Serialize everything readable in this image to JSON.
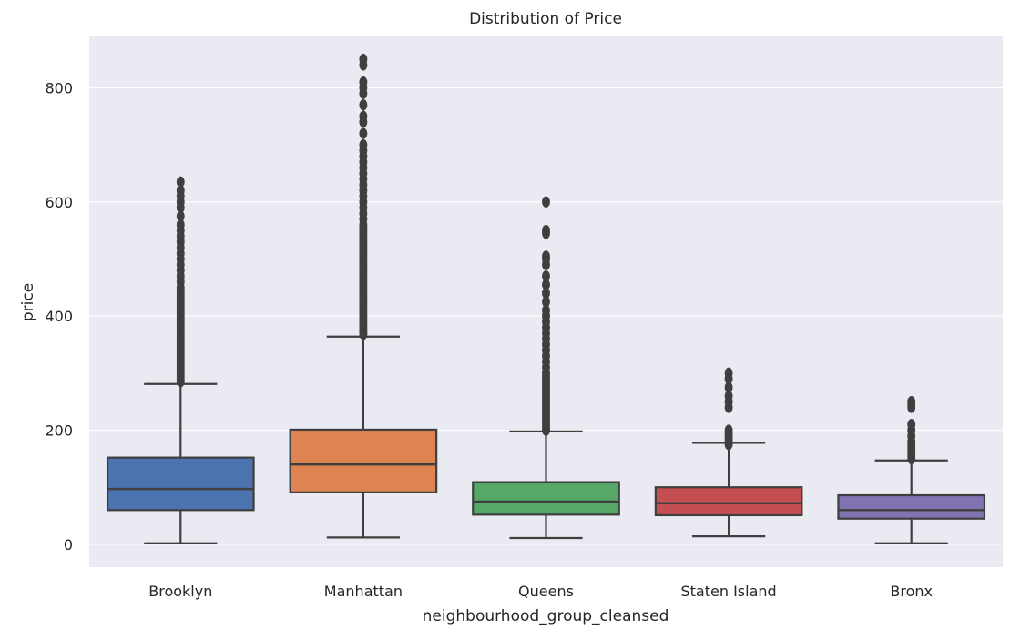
{
  "chart_data": {
    "type": "box",
    "title": "Distribution of Price",
    "xlabel": "neighbourhood_group_cleansed",
    "ylabel": "price",
    "ylim": [
      -40,
      890
    ],
    "yticks": [
      0,
      200,
      400,
      600,
      800
    ],
    "grid": true,
    "categories": [
      "Brooklyn",
      "Manhattan",
      "Queens",
      "Staten Island",
      "Bronx"
    ],
    "colors": [
      "#4c72b0",
      "#dd8452",
      "#55a868",
      "#c44e52",
      "#8172b3"
    ],
    "series": [
      {
        "category": "Brooklyn",
        "min": 2,
        "q1": 60,
        "median": 97,
        "q3": 152,
        "max": 281,
        "outliers": [
          285,
          290,
          295,
          300,
          305,
          310,
          315,
          320,
          325,
          330,
          335,
          340,
          345,
          350,
          355,
          360,
          365,
          370,
          375,
          380,
          385,
          390,
          395,
          400,
          405,
          410,
          415,
          420,
          425,
          430,
          435,
          440,
          445,
          450,
          460,
          470,
          480,
          490,
          500,
          510,
          520,
          530,
          540,
          550,
          560,
          575,
          590,
          600,
          610,
          620,
          635
        ]
      },
      {
        "category": "Manhattan",
        "min": 12,
        "q1": 91,
        "median": 140,
        "q3": 201,
        "max": 364,
        "outliers": [
          368,
          372,
          376,
          380,
          385,
          390,
          395,
          400,
          405,
          410,
          415,
          420,
          425,
          430,
          435,
          440,
          445,
          450,
          455,
          460,
          465,
          470,
          475,
          480,
          485,
          490,
          495,
          500,
          505,
          510,
          515,
          520,
          525,
          530,
          535,
          540,
          545,
          550,
          555,
          560,
          570,
          580,
          590,
          600,
          610,
          620,
          630,
          640,
          650,
          660,
          670,
          680,
          690,
          700,
          720,
          740,
          750,
          770,
          790,
          800,
          810,
          840,
          850
        ]
      },
      {
        "category": "Queens",
        "min": 11,
        "q1": 52,
        "median": 75,
        "q3": 109,
        "max": 198,
        "outliers": [
          200,
          205,
          210,
          215,
          220,
          225,
          230,
          235,
          240,
          245,
          250,
          255,
          260,
          265,
          270,
          275,
          280,
          285,
          290,
          295,
          300,
          310,
          320,
          330,
          340,
          350,
          360,
          370,
          380,
          390,
          400,
          410,
          425,
          440,
          455,
          470,
          490,
          500,
          505,
          545,
          550,
          600
        ]
      },
      {
        "category": "Staten Island",
        "min": 14,
        "q1": 51,
        "median": 72,
        "q3": 100,
        "max": 178,
        "outliers": [
          175,
          180,
          185,
          190,
          195,
          200,
          240,
          250,
          260,
          275,
          290,
          300
        ]
      },
      {
        "category": "Bronx",
        "min": 2,
        "q1": 45,
        "median": 60,
        "q3": 86,
        "max": 147,
        "outliers": [
          150,
          155,
          160,
          165,
          170,
          175,
          180,
          190,
          200,
          210,
          240,
          245,
          250
        ]
      }
    ]
  }
}
